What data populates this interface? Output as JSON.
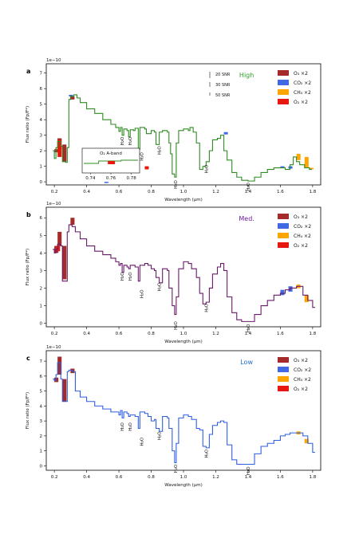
{
  "legend": [
    {
      "label": "O₃ ×2",
      "color": "#a52a2a"
    },
    {
      "label": "CO₂ ×2",
      "color": "#4169e1"
    },
    {
      "label": "CH₄ ×2",
      "color": "#ffa500"
    },
    {
      "label": "O₂ ×2",
      "color": "#e8170f"
    }
  ],
  "h2o_label": "H₂O",
  "snr_labels": [
    "20 SNR",
    "30 SNR",
    "50 SNR"
  ],
  "inset": {
    "title": "O₂ A-band",
    "xticks": [
      "0.74",
      "0.76",
      "0.78"
    ]
  },
  "chart_data": [
    {
      "type": "line",
      "panel": "a",
      "level": "High",
      "level_color": "#2ca02c",
      "line_color": "#2e8b22",
      "exponent": "1e−10",
      "xlabel": "Wavelength (μm)",
      "ylabel": "Flux ratio (Fp/F*)",
      "xlim": [
        0.15,
        1.85
      ],
      "ylim": [
        -0.2,
        7.6
      ],
      "xticks": [
        "0.2",
        "0.4",
        "0.6",
        "0.8",
        "1.0",
        "1.2",
        "1.4",
        "1.6",
        "1.8"
      ],
      "yticks": [
        "0",
        "1",
        "2",
        "3",
        "4",
        "5",
        "6",
        "7"
      ],
      "h2o_x": [
        0.62,
        0.67,
        0.74,
        0.85,
        0.95,
        1.14,
        1.4
      ],
      "band_a": [
        [
          0.2,
          1.9,
          2.1
        ],
        [
          0.22,
          2.1,
          2.8
        ],
        [
          0.25,
          1.3,
          2.4
        ],
        [
          0.3,
          5.3,
          5.5
        ]
      ],
      "band_b": [
        [
          0.22,
          2.7,
          2.8
        ],
        [
          0.29,
          5.5,
          5.6
        ],
        [
          0.51,
          0.0,
          0.0
        ],
        [
          1.25,
          3.05,
          3.2
        ],
        [
          1.6,
          0.9,
          1.0
        ],
        [
          1.65,
          0.85,
          1.0
        ]
      ],
      "band_c": [
        [
          1.7,
          1.4,
          1.8
        ],
        [
          1.75,
          0.9,
          1.6
        ],
        [
          1.78,
          0.8,
          0.9
        ]
      ],
      "band_d": [
        [
          0.22,
          1.6,
          2.7
        ],
        [
          0.76,
          0.8,
          1.0
        ]
      ]
    },
    {
      "type": "line",
      "panel": "b",
      "level": "Med.",
      "level_color": "#6a1b9a",
      "line_color": "#6a1b6a",
      "exponent": "1e−10",
      "xlabel": "Wavelength (μm)",
      "ylabel": "Flux ratio (Fp/F*)",
      "xlim": [
        0.15,
        1.85
      ],
      "ylim": [
        -0.2,
        6.6
      ],
      "xticks": [
        "0.2",
        "0.4",
        "0.6",
        "0.8",
        "1.0",
        "1.2",
        "1.4",
        "1.6",
        "1.8"
      ],
      "yticks": [
        "0",
        "1",
        "2",
        "3",
        "4",
        "5",
        "6"
      ],
      "h2o_x": [
        0.62,
        0.67,
        0.74,
        0.85,
        0.95,
        1.14,
        1.4
      ],
      "band_a": [
        [
          0.2,
          4.0,
          4.4
        ],
        [
          0.22,
          4.4,
          5.2
        ],
        [
          0.25,
          2.5,
          4.4
        ],
        [
          0.3,
          5.6,
          6.0
        ]
      ],
      "band_b": [
        [
          1.6,
          1.6,
          1.9
        ],
        [
          1.65,
          1.8,
          2.1
        ]
      ],
      "band_c": [
        [
          1.7,
          2.0,
          2.2
        ],
        [
          1.75,
          1.2,
          1.6
        ]
      ],
      "band_d": [
        [
          0.21,
          4.1,
          4.4
        ]
      ]
    },
    {
      "type": "line",
      "panel": "c",
      "level": "Low",
      "level_color": "#1e6fd6",
      "line_color": "#2e5fe0",
      "exponent": "1e−10",
      "xlabel": "Wavelength (μm)",
      "ylabel": "Flux ratio (Fp/F*)",
      "xlim": [
        0.15,
        1.85
      ],
      "ylim": [
        -0.3,
        7.7
      ],
      "xticks": [
        "0.2",
        "0.4",
        "0.6",
        "0.8",
        "1.0",
        "1.2",
        "1.4",
        "1.6",
        "1.8"
      ],
      "yticks": [
        "0",
        "1",
        "2",
        "3",
        "4",
        "5",
        "6",
        "7"
      ],
      "h2o_x": [
        0.62,
        0.67,
        0.74,
        0.85,
        0.95,
        1.14,
        1.4
      ],
      "band_a": [
        [
          0.2,
          5.6,
          5.9
        ],
        [
          0.22,
          6.1,
          7.3
        ],
        [
          0.25,
          4.3,
          5.8
        ],
        [
          0.3,
          6.2,
          6.5
        ]
      ],
      "band_b": [],
      "band_c": [
        [
          1.7,
          2.1,
          2.3
        ],
        [
          1.75,
          1.5,
          1.8
        ]
      ],
      "band_d": []
    }
  ]
}
